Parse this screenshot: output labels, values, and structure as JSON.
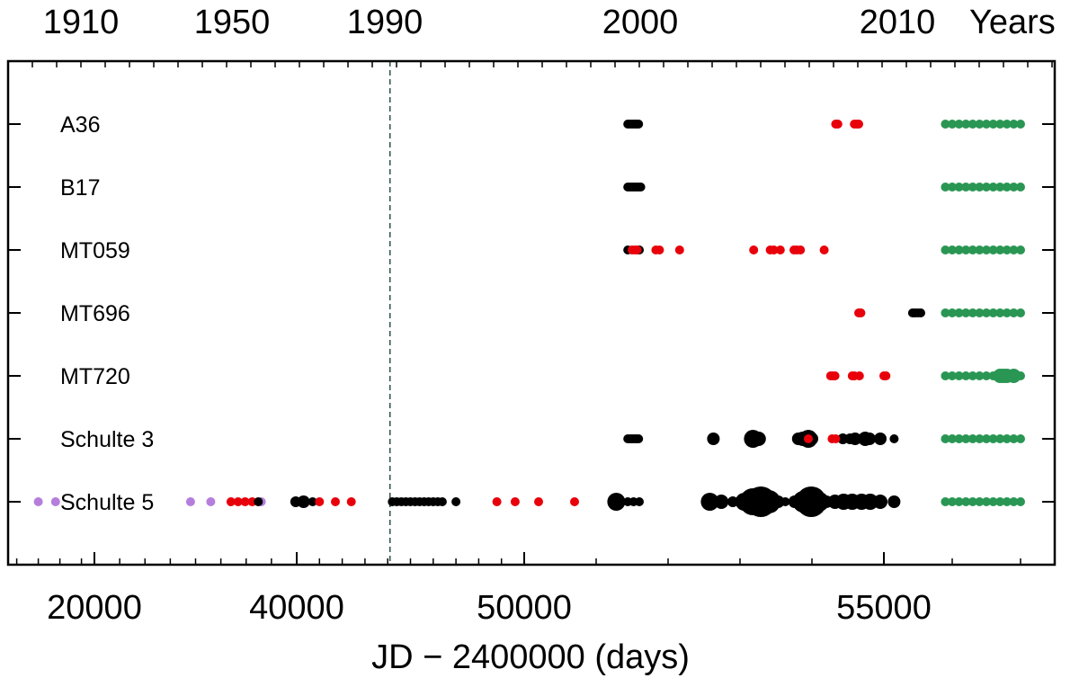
{
  "chart_data": {
    "type": "scatter",
    "xlabel": "JD − 2400000 (days)",
    "top_axis_label": "Years",
    "x_ticks": [
      "20000",
      "40000",
      "50000",
      "55000"
    ],
    "year_ticks": [
      "1910",
      "1950",
      "1990",
      "2000",
      "2010"
    ],
    "x_scale": "piecewise-compressed",
    "grid": false,
    "vline_x": 44100,
    "stars": [
      "A36",
      "B17",
      "MT059",
      "MT696",
      "MT720",
      "Schulte 3",
      "Schulte 5"
    ],
    "colors": {
      "black": "#000000",
      "red": "#e8000b",
      "green": "#2a9654",
      "purple": "#b57edc",
      "vline": "#2f4f4f"
    },
    "series": [
      {
        "star": "A36",
        "color": "black",
        "x": [
          51440,
          51470,
          51500,
          51530,
          51560,
          51590
        ],
        "size": [
          1,
          1,
          1,
          1,
          1,
          1
        ]
      },
      {
        "star": "A36",
        "color": "red",
        "x": [
          54330,
          54360,
          54590,
          54620,
          54650
        ],
        "size": [
          1,
          1,
          1,
          1,
          1
        ]
      },
      {
        "star": "A36",
        "color": "green",
        "x": [
          55900,
          56000,
          56100,
          56200,
          56300,
          56400,
          56500,
          56600,
          56700,
          56800,
          56900,
          57000
        ],
        "size": [
          1,
          1,
          1,
          1,
          1,
          1,
          1,
          1,
          1,
          1,
          1,
          1
        ]
      },
      {
        "star": "B17",
        "color": "black",
        "x": [
          51440,
          51470,
          51500,
          51530,
          51560,
          51590,
          51620
        ],
        "size": [
          1,
          1,
          1,
          1,
          1,
          1,
          1
        ]
      },
      {
        "star": "B17",
        "color": "green",
        "x": [
          55900,
          56000,
          56100,
          56200,
          56300,
          56400,
          56500,
          56600,
          56700,
          56800,
          56900,
          57000
        ],
        "size": [
          1,
          1,
          1,
          1,
          1,
          1,
          1,
          1,
          1,
          1,
          1,
          1
        ]
      },
      {
        "star": "MT059",
        "color": "black",
        "x": [
          51440,
          51600
        ],
        "size": [
          1,
          1
        ]
      },
      {
        "star": "MT059",
        "color": "red",
        "x": [
          51500,
          51540,
          51570,
          51830,
          51880,
          52160,
          53190,
          53420,
          53470,
          53560,
          53750,
          53790,
          53840,
          54170
        ],
        "size": [
          1,
          1,
          1,
          1,
          1,
          1,
          1,
          1,
          1,
          1,
          1,
          1,
          1,
          1
        ]
      },
      {
        "star": "MT059",
        "color": "green",
        "x": [
          55900,
          56000,
          56100,
          56200,
          56300,
          56400,
          56500,
          56600,
          56700,
          56800,
          56900,
          57000
        ],
        "size": [
          1,
          1,
          1,
          1,
          1,
          1,
          1,
          1,
          1,
          1,
          1,
          1
        ]
      },
      {
        "star": "MT696",
        "color": "red",
        "x": [
          54650,
          54680
        ],
        "size": [
          1,
          1
        ]
      },
      {
        "star": "MT696",
        "color": "black",
        "x": [
          55420,
          55460,
          55500,
          55540
        ],
        "size": [
          1,
          1,
          1,
          1
        ]
      },
      {
        "star": "MT696",
        "color": "green",
        "x": [
          55900,
          56000,
          56100,
          56200,
          56300,
          56400,
          56500,
          56600,
          56700,
          56800,
          56900,
          57000
        ],
        "size": [
          1,
          1,
          1,
          1,
          1,
          1,
          1,
          1,
          1,
          1,
          1,
          1
        ]
      },
      {
        "star": "MT720",
        "color": "red",
        "x": [
          54260,
          54290,
          54320,
          54560,
          54590,
          54660,
          55000,
          55030
        ],
        "size": [
          1,
          1,
          1,
          1,
          1,
          1,
          1,
          1
        ]
      },
      {
        "star": "MT720",
        "color": "green",
        "x": [
          55900,
          56000,
          56100,
          56200,
          56300,
          56400,
          56500,
          56600,
          56700,
          56750,
          56800,
          56900,
          57000
        ],
        "size": [
          1,
          1,
          1,
          1,
          1,
          1,
          1,
          1,
          1.6,
          1.6,
          1.6,
          1.6,
          1
        ]
      },
      {
        "star": "Schulte 3",
        "color": "black",
        "x": [
          51440,
          51470,
          51500,
          51530,
          51560,
          51590,
          52630,
          53180,
          53260,
          53810,
          53870,
          53950,
          54000,
          54430,
          54530,
          54600,
          54740,
          54800,
          54950,
          55150
        ],
        "size": [
          1,
          1,
          1,
          1,
          1,
          1,
          1.4,
          2,
          1.6,
          1.4,
          1.6,
          2,
          1.4,
          1.2,
          1.2,
          1.4,
          1.6,
          1.4,
          1.4,
          1
        ]
      },
      {
        "star": "Schulte 3",
        "color": "red",
        "x": [
          53950,
          54280,
          54330
        ],
        "size": [
          1,
          1,
          1
        ]
      },
      {
        "star": "Schulte 3",
        "color": "green",
        "x": [
          55900,
          56000,
          56100,
          56200,
          56300,
          56400,
          56500,
          56600,
          56700,
          56800,
          56900,
          57000
        ],
        "size": [
          1,
          1,
          1,
          1,
          1,
          1,
          1,
          1,
          1,
          1,
          1,
          1
        ]
      },
      {
        "star": "Schulte 5",
        "color": "purple",
        "x": [
          13500,
          15500,
          29500,
          31500,
          36500
        ],
        "size": [
          1,
          1,
          1,
          1,
          1
        ]
      },
      {
        "star": "Schulte 5",
        "color": "red",
        "x": [
          33500,
          34200,
          34900,
          35600
        ],
        "size": [
          1,
          1,
          1,
          1
        ]
      },
      {
        "star": "Schulte 5",
        "color": "black",
        "x": [
          36200,
          39900,
          40300,
          40700
        ],
        "size": [
          1,
          1.2,
          1.4,
          1
        ]
      },
      {
        "star": "Schulte 5",
        "color": "red",
        "x": [
          41000,
          41700,
          42400
        ],
        "size": [
          1,
          1,
          1
        ]
      },
      {
        "star": "Schulte 5",
        "color": "black",
        "x": [
          44200,
          44400,
          44600,
          44800,
          45000,
          45200,
          45400,
          45600,
          45800,
          46000,
          46200,
          46400,
          47000
        ],
        "size": [
          1,
          1,
          1,
          1,
          1,
          1,
          1,
          1,
          1,
          1,
          1,
          1,
          1
        ]
      },
      {
        "star": "Schulte 5",
        "color": "red",
        "x": [
          48800,
          49600,
          50200,
          50700
        ],
        "size": [
          1,
          1,
          1,
          1
        ]
      },
      {
        "star": "Schulte 5",
        "color": "black",
        "x": [
          51280,
          51440,
          51520,
          51600,
          52580,
          52740,
          52900,
          53060,
          53180,
          53290,
          53400,
          53530,
          53630,
          53760,
          53880,
          53990,
          54100,
          54200,
          54320,
          54440,
          54560,
          54690,
          54810,
          54950,
          55150
        ],
        "size": [
          2,
          1,
          1,
          1,
          2,
          1.6,
          1.2,
          2,
          3,
          3.4,
          2.6,
          1.4,
          1,
          1.4,
          2.4,
          3.4,
          2.2,
          1.4,
          1.6,
          1.8,
          1.8,
          1.8,
          1.8,
          1.6,
          1.4
        ]
      },
      {
        "star": "Schulte 5",
        "color": "green",
        "x": [
          55900,
          56000,
          56100,
          56200,
          56300,
          56400,
          56500,
          56600,
          56700,
          56800,
          56900,
          57000
        ],
        "size": [
          1,
          1,
          1,
          1,
          1,
          1,
          1,
          1,
          1,
          1,
          1,
          1
        ]
      }
    ]
  }
}
